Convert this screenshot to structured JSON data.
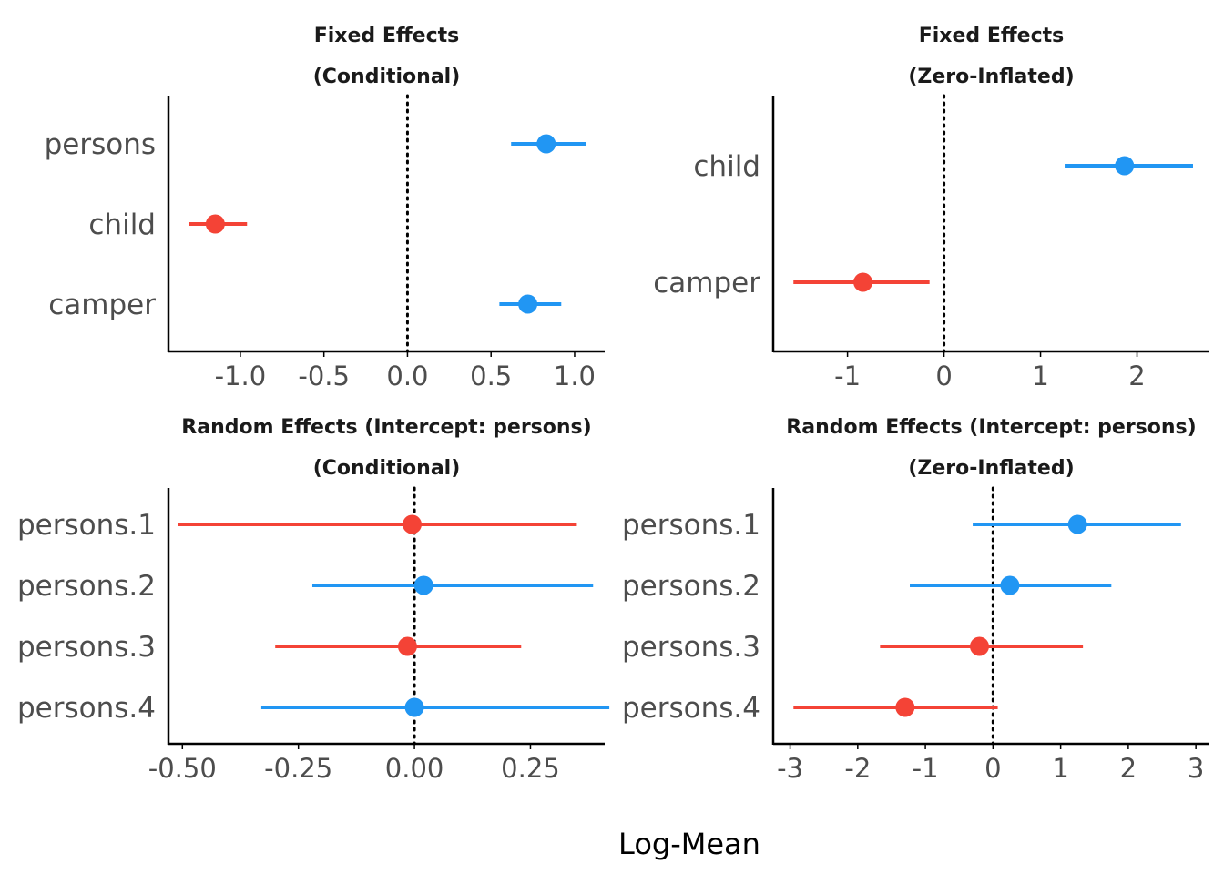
{
  "xlabel": "Log-Mean",
  "colors": {
    "positive": "#2196F3",
    "negative": "#F44336",
    "axis": "#000000",
    "text": "#4d4d4d"
  },
  "chart_data": [
    {
      "type": "forest",
      "title": "Fixed Effects",
      "subtitle": "(Conditional)",
      "xlim": [
        -1.43,
        1.18
      ],
      "ticks": [
        -1.0,
        -0.5,
        0.0,
        0.5,
        1.0
      ],
      "tick_labels": [
        "-1.0",
        "-0.5",
        "0.0",
        "0.5",
        "1.0"
      ],
      "reference_line": 0,
      "terms": [
        {
          "label": "persons",
          "estimate": 0.83,
          "low": 0.62,
          "high": 1.07
        },
        {
          "label": "child",
          "estimate": -1.15,
          "low": -1.31,
          "high": -0.96
        },
        {
          "label": "camper",
          "estimate": 0.72,
          "low": 0.55,
          "high": 0.92
        }
      ]
    },
    {
      "type": "forest",
      "title": "Fixed Effects",
      "subtitle": "(Zero-Inflated)",
      "xlim": [
        -1.77,
        2.75
      ],
      "ticks": [
        -1,
        0,
        1,
        2
      ],
      "tick_labels": [
        "-1",
        "0",
        "1",
        "2"
      ],
      "reference_line": 0,
      "terms": [
        {
          "label": "child",
          "estimate": 1.87,
          "low": 1.25,
          "high": 2.58
        },
        {
          "label": "camper",
          "estimate": -0.84,
          "low": -1.56,
          "high": -0.15
        }
      ]
    },
    {
      "type": "forest",
      "title": "Random Effects (Intercept: persons)",
      "subtitle": "(Conditional)",
      "xlim": [
        -0.53,
        0.41
      ],
      "ticks": [
        -0.5,
        -0.25,
        0.0,
        0.25
      ],
      "tick_labels": [
        "-0.50",
        "-0.25",
        "0.00",
        "0.25"
      ],
      "reference_line": 0,
      "terms": [
        {
          "label": "persons.1",
          "estimate": -0.005,
          "low": -0.51,
          "high": 0.35
        },
        {
          "label": "persons.2",
          "estimate": 0.02,
          "low": -0.22,
          "high": 0.385
        },
        {
          "label": "persons.3",
          "estimate": -0.015,
          "low": -0.3,
          "high": 0.23
        },
        {
          "label": "persons.4",
          "estimate": 0.0,
          "low": -0.33,
          "high": 0.42
        }
      ]
    },
    {
      "type": "forest",
      "title": "Random Effects (Intercept: persons)",
      "subtitle": "(Zero-Inflated)",
      "xlim": [
        -3.25,
        3.2
      ],
      "ticks": [
        -3,
        -2,
        -1,
        0,
        1,
        2,
        3
      ],
      "tick_labels": [
        "-3",
        "-2",
        "-1",
        "0",
        "1",
        "2",
        "3"
      ],
      "reference_line": 0,
      "terms": [
        {
          "label": "persons.1",
          "estimate": 1.25,
          "low": -0.3,
          "high": 2.78
        },
        {
          "label": "persons.2",
          "estimate": 0.25,
          "low": -1.23,
          "high": 1.75
        },
        {
          "label": "persons.3",
          "estimate": -0.2,
          "low": -1.67,
          "high": 1.33
        },
        {
          "label": "persons.4",
          "estimate": -1.3,
          "low": -2.95,
          "high": 0.07
        }
      ]
    }
  ]
}
